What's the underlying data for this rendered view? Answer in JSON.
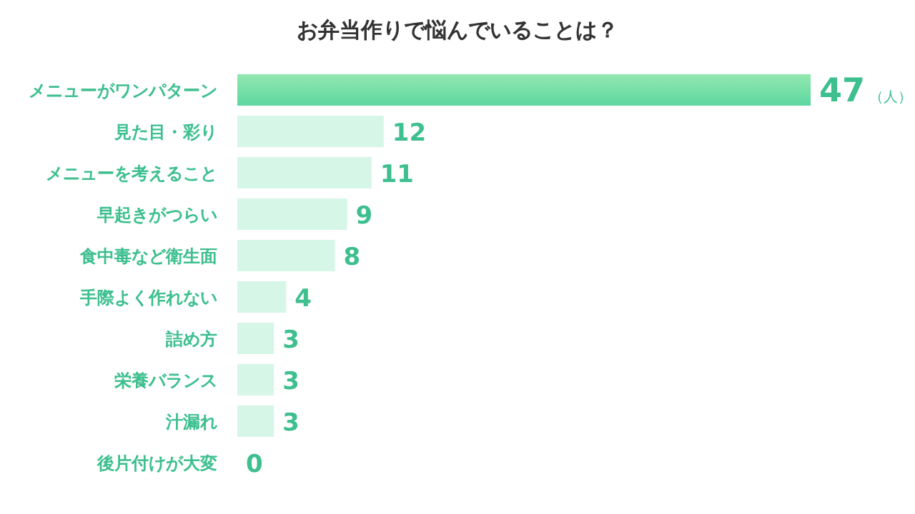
{
  "chart_data": {
    "type": "bar",
    "orientation": "horizontal",
    "title": "お弁当作りで悩んでいることは？",
    "categories": [
      "メニューがワンパターン",
      "見た目・彩り",
      "メニューを考えること",
      "早起きがつらい",
      "食中毒など衛生面",
      "手際よく作れない",
      "詰め方",
      "栄養バランス",
      "汁漏れ",
      "後片付けが大変"
    ],
    "values": [
      47,
      12,
      11,
      9,
      8,
      4,
      3,
      3,
      3,
      0
    ],
    "colors": [
      "#5cd6a0",
      "#d6f6e8",
      "#d6f6e8",
      "#d6f6e8",
      "#d6f6e8",
      "#d6f6e8",
      "#d6f6e8",
      "#d6f6e8",
      "#d6f6e8",
      "#d6f6e8"
    ],
    "value_labels": [
      "47（人）",
      "12",
      "11",
      "9",
      "8",
      "4",
      "3",
      "3",
      "3",
      "0"
    ]
  }
}
